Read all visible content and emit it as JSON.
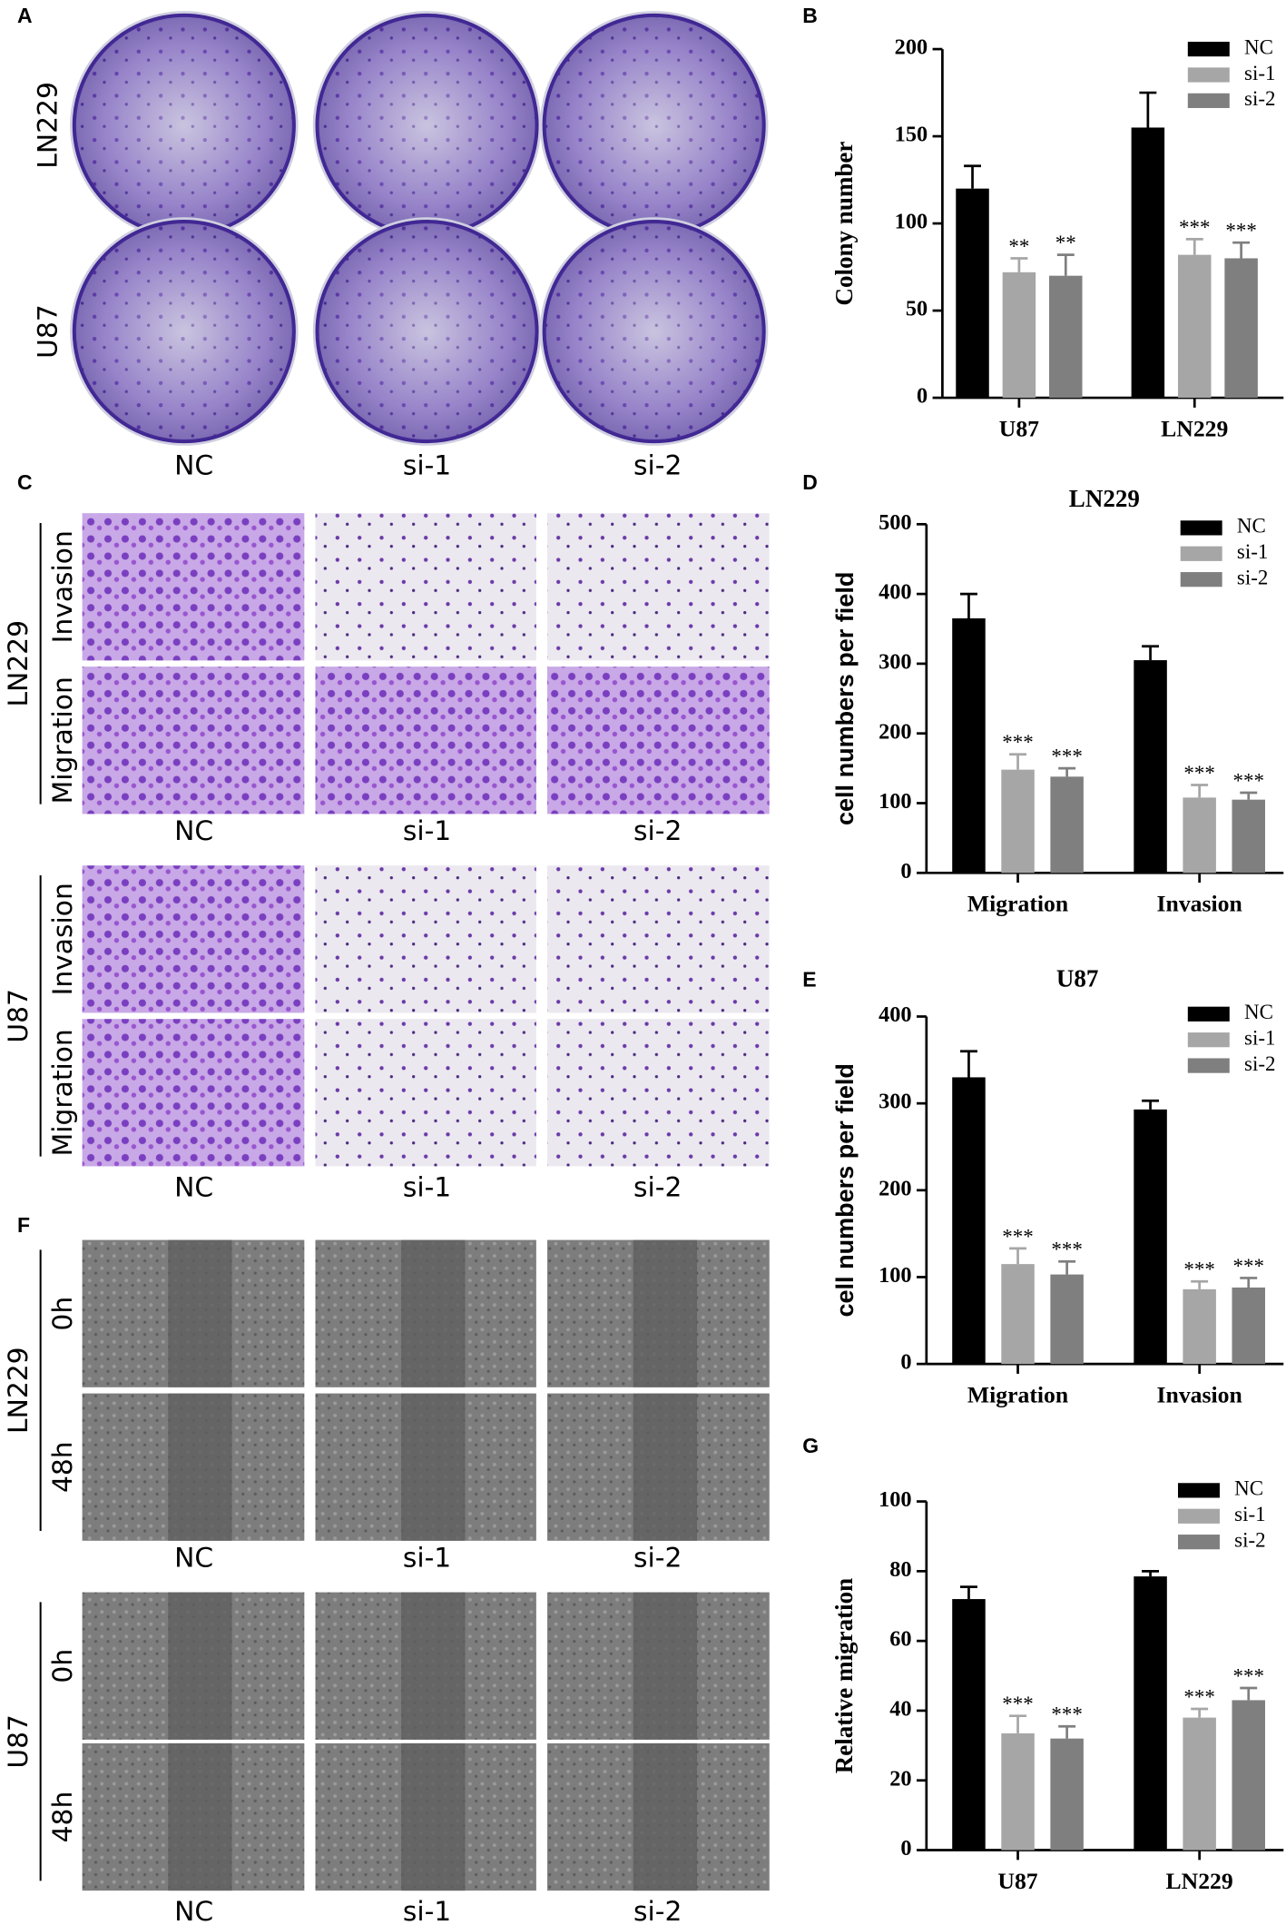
{
  "panels": {
    "letters": [
      "A",
      "B",
      "C",
      "D",
      "E",
      "F",
      "G"
    ],
    "A": {
      "rows": [
        "LN229",
        "U87"
      ],
      "columns": [
        "NC",
        "si-1",
        "si-2"
      ]
    },
    "C": {
      "groups": [
        {
          "name": "LN229",
          "rows": [
            "Invasion",
            "Migration"
          ],
          "columns": [
            "NC",
            "si-1",
            "si-2"
          ]
        },
        {
          "name": "U87",
          "rows": [
            "Invasion",
            "Migration"
          ],
          "columns": [
            "NC",
            "si-1",
            "si-2"
          ]
        }
      ]
    },
    "F": {
      "groups": [
        {
          "name": "LN229",
          "rows": [
            "0h",
            "48h"
          ],
          "columns": [
            "NC",
            "si-1",
            "si-2"
          ]
        },
        {
          "name": "U87",
          "rows": [
            "0h",
            "48h"
          ],
          "columns": [
            "NC",
            "si-1",
            "si-2"
          ]
        }
      ]
    }
  },
  "chart_data": [
    {
      "type": "bar",
      "y_label": "Colony number",
      "categories": [
        "U87",
        "LN229"
      ],
      "series": [
        {
          "name": "NC",
          "color": "#000000",
          "values": [
            120,
            155
          ],
          "errors": [
            13,
            20
          ],
          "significance": [
            null,
            null
          ]
        },
        {
          "name": "si-1",
          "color": "#a6a6a6",
          "values": [
            72,
            82
          ],
          "errors": [
            8,
            9
          ],
          "significance": [
            "**",
            "***"
          ]
        },
        {
          "name": "si-2",
          "color": "#7f7f7f",
          "values": [
            70,
            80
          ],
          "errors": [
            12,
            9
          ],
          "significance": [
            "**",
            "***"
          ]
        }
      ],
      "ylim": [
        0,
        200
      ],
      "yticks": [
        0,
        50,
        100,
        150,
        200
      ],
      "legend": "upper right"
    },
    {
      "type": "bar",
      "title": "LN229",
      "y_label": "cell numbers per field",
      "categories": [
        "Migration",
        "Invasion"
      ],
      "series": [
        {
          "name": "NC",
          "color": "#000000",
          "values": [
            365,
            305
          ],
          "errors": [
            35,
            20
          ],
          "significance": [
            null,
            null
          ]
        },
        {
          "name": "si-1",
          "color": "#a6a6a6",
          "values": [
            148,
            108
          ],
          "errors": [
            22,
            18
          ],
          "significance": [
            "***",
            "***"
          ]
        },
        {
          "name": "si-2",
          "color": "#7f7f7f",
          "values": [
            138,
            105
          ],
          "errors": [
            12,
            10
          ],
          "significance": [
            "***",
            "***"
          ]
        }
      ],
      "ylim": [
        0,
        500
      ],
      "yticks": [
        0,
        100,
        200,
        300,
        400,
        500
      ],
      "legend": "upper right"
    },
    {
      "type": "bar",
      "title": "U87",
      "y_label": "cell numbers per field",
      "categories": [
        "Migration",
        "Invasion"
      ],
      "series": [
        {
          "name": "NC",
          "color": "#000000",
          "values": [
            330,
            293
          ],
          "errors": [
            30,
            10
          ],
          "significance": [
            null,
            null
          ]
        },
        {
          "name": "si-1",
          "color": "#a6a6a6",
          "values": [
            115,
            86
          ],
          "errors": [
            18,
            9
          ],
          "significance": [
            "***",
            "***"
          ]
        },
        {
          "name": "si-2",
          "color": "#7f7f7f",
          "values": [
            103,
            88
          ],
          "errors": [
            15,
            11
          ],
          "significance": [
            "***",
            "***"
          ]
        }
      ],
      "ylim": [
        0,
        400
      ],
      "yticks": [
        0,
        100,
        200,
        300,
        400
      ],
      "legend": "upper right"
    },
    {
      "type": "bar",
      "y_label": "Relative migration",
      "categories": [
        "U87",
        "LN229"
      ],
      "series": [
        {
          "name": "NC",
          "color": "#000000",
          "values": [
            72,
            78.5
          ],
          "errors": [
            3.5,
            1.5
          ],
          "significance": [
            null,
            null
          ]
        },
        {
          "name": "si-1",
          "color": "#a6a6a6",
          "values": [
            33.5,
            38
          ],
          "errors": [
            5,
            2.5
          ],
          "significance": [
            "***",
            "***"
          ]
        },
        {
          "name": "si-2",
          "color": "#7f7f7f",
          "values": [
            32,
            43
          ],
          "errors": [
            3.5,
            3.5
          ],
          "significance": [
            "***",
            "***"
          ]
        }
      ],
      "ylim": [
        0,
        100
      ],
      "yticks": [
        0,
        20,
        40,
        60,
        80,
        100
      ],
      "legend": "upper right"
    }
  ]
}
